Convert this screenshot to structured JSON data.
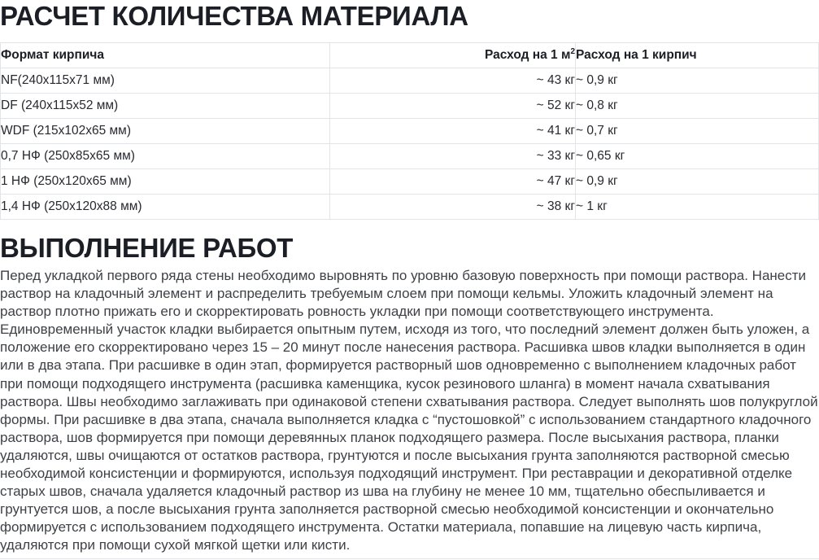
{
  "page": {
    "section1_title": "РАСЧЕТ КОЛИЧЕСТВА МАТЕРИАЛА",
    "section2_title": "ВЫПОЛНЕНИЕ РАБОТ",
    "body_paragraph": "Перед укладкой первого ряда стены необходимо выровнять по уровню базовую поверхность при помощи раствора. Нанести раствор на кладочный элемент и распределить требуемым слоем при помощи кельмы. Уложить кладочный элемент на раствор плотно прижать его и скорректировать ровность укладки при помощи соответствующего инструмента. Единовременный участок кладки выбирается опытным путем, исходя из того, что последний элемент должен быть уложен, а положение его скорректировано через 15 – 20 минут после нанесения раствора. Расшивка швов кладки выполняется в один или в два этапа. При расшивке в один этап, формируется растворный шов одновременно с выполнением кладочных работ при помощи подходящего инструмента (расшивка каменщика, кусок резинового шланга) в момент начала схватывания раствора. Швы необходимо заглаживать при одинаковой степени схватывания раствора. Следует выполнять шов полукруглой формы. При расшивке в два этапа, сначала выполняется кладка с “пустошовкой” с использованием стандартного кладочного раствора, шов формируется при помощи деревянных планок подходящего размера. После высыхания раствора, планки удаляются, швы очищаются от остатков раствора, грунтуются и после высыхания грунта заполняются растворной смесью необходимой консистенции и формируются, используя подходящий инструмент. При реставрации и декоративной отделке старых швов, сначала удаляется кладочный раствор из шва на глубину не менее 10 мм, тщательно обеспыливается и грунтуется шов, а после высыхания грунта заполняется растворной смесью необходимой консистенции и окончательно формируется с использованием подходящего инструмента. Остатки материала, попавшие на лицевую часть кирпича, удаляются при помощи сухой мягкой щетки или кисти."
  },
  "materials_table": {
    "columns": [
      {
        "label": "Формат кирпича"
      },
      {
        "label": "Расход на 1 м",
        "sup": "2"
      },
      {
        "label": "Расход на 1 кирпич"
      }
    ],
    "rows": [
      {
        "format": "NF(240x115x71 мм)",
        "per_m2": "~ 43 кг",
        "per_brick": "~ 0,9 кг"
      },
      {
        "format": "DF (240x115x52 мм)",
        "per_m2": "~ 52 кг",
        "per_brick": "~ 0,8 кг"
      },
      {
        "format": "WDF (215x102x65 мм)",
        "per_m2": "~ 41 кг",
        "per_brick": "~ 0,7 кг"
      },
      {
        "format": "0,7 НФ (250x85x65 мм)",
        "per_m2": "~ 33 кг",
        "per_brick": "~ 0,65 кг"
      },
      {
        "format": "1 НФ (250x120x65 мм)",
        "per_m2": "~ 47 кг",
        "per_brick": "~ 0,9 кг"
      },
      {
        "format": "1,4 НФ (250x120x88 мм)",
        "per_m2": "~ 38 кг",
        "per_brick": "~ 1 кг"
      }
    ]
  },
  "colors": {
    "heading_text": "#1b1e24",
    "table_text": "#26292e",
    "body_text": "#3e4146",
    "table_border": "#e3e4e8",
    "background": "#ffffff"
  }
}
